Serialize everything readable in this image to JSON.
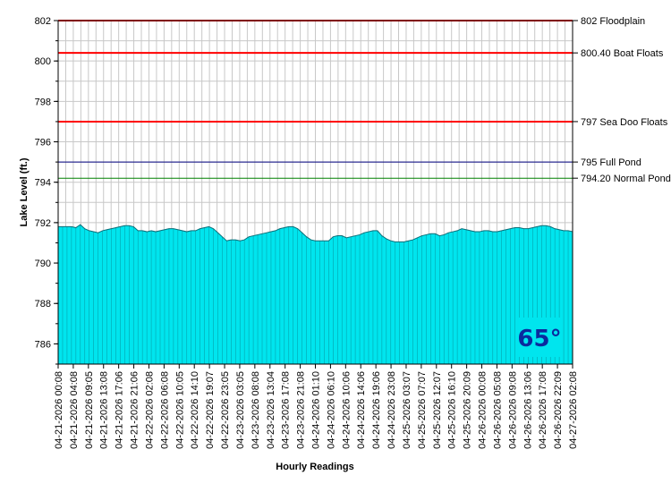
{
  "chart_data": {
    "type": "area",
    "xlabel": "Hourly Readings",
    "ylabel": "Lake Level (ft.)",
    "ylim": [
      785,
      802
    ],
    "yticks": [
      786,
      788,
      790,
      792,
      794,
      796,
      798,
      800,
      802
    ],
    "grid": true,
    "x_tick_labels": [
      "04-21-2026 00:08",
      "04-21-2026 04:08",
      "04-21-2026 09:05",
      "04-21-2026 13:08",
      "04-21-2026 17:06",
      "04-21-2026 21:06",
      "04-22-2026 02:08",
      "04-22-2026 06:08",
      "04-22-2026 10:05",
      "04-22-2026 14:10",
      "04-22-2026 19:07",
      "04-22-2026 23:05",
      "04-23-2026 03:05",
      "04-23-2026 08:08",
      "04-23-2026 13:04",
      "04-23-2026 17:08",
      "04-23-2026 21:08",
      "04-24-2026 01:10",
      "04-24-2026 06:10",
      "04-24-2026 10:06",
      "04-24-2026 14:06",
      "04-24-2026 19:06",
      "04-24-2026 23:08",
      "04-25-2026 03:07",
      "04-25-2026 07:07",
      "04-25-2026 12:07",
      "04-25-2026 16:10",
      "04-25-2026 20:09",
      "04-26-2026 00:08",
      "04-26-2026 05:08",
      "04-26-2026 09:08",
      "04-26-2026 13:06",
      "04-26-2026 17:08",
      "04-26-2026 22:09",
      "04-27-2026 02:08"
    ],
    "series": [
      {
        "color": "#00e5ee",
        "values": [
          791.8,
          791.8,
          791.8,
          791.8,
          791.75,
          791.9,
          791.7,
          791.6,
          791.55,
          791.5,
          791.6,
          791.65,
          791.7,
          791.75,
          791.8,
          791.85,
          791.85,
          791.8,
          791.6,
          791.6,
          791.55,
          791.6,
          791.55,
          791.6,
          791.65,
          791.7,
          791.7,
          791.65,
          791.6,
          791.55,
          791.6,
          791.6,
          791.7,
          791.75,
          791.8,
          791.7,
          791.5,
          791.3,
          791.1,
          791.15,
          791.15,
          791.1,
          791.15,
          791.3,
          791.35,
          791.4,
          791.45,
          791.5,
          791.55,
          791.6,
          791.7,
          791.75,
          791.8,
          791.8,
          791.7,
          791.5,
          791.3,
          791.15,
          791.1,
          791.1,
          791.1,
          791.1,
          791.3,
          791.35,
          791.35,
          791.25,
          791.3,
          791.35,
          791.4,
          791.5,
          791.55,
          791.6,
          791.6,
          791.35,
          791.2,
          791.1,
          791.05,
          791.05,
          791.05,
          791.1,
          791.15,
          791.25,
          791.35,
          791.4,
          791.45,
          791.45,
          791.35,
          791.4,
          791.5,
          791.55,
          791.6,
          791.7,
          791.65,
          791.6,
          791.55,
          791.55,
          791.6,
          791.6,
          791.55,
          791.55,
          791.6,
          791.65,
          791.7,
          791.75,
          791.75,
          791.7,
          791.7,
          791.75,
          791.8,
          791.85,
          791.85,
          791.8,
          791.7,
          791.65,
          791.6,
          791.6,
          791.55
        ]
      }
    ],
    "reference_lines": [
      {
        "value": 802,
        "label": "802 Floodplain",
        "color": "#ff0000"
      },
      {
        "value": 800.4,
        "label": "800.40 Boat Floats",
        "color": "#ff0000"
      },
      {
        "value": 797,
        "label": "797 Sea Doo Floats",
        "color": "#ff0000"
      },
      {
        "value": 795,
        "label": "795 Full Pond",
        "color": "#000080"
      },
      {
        "value": 794.2,
        "label": "794.20 Normal Pond",
        "color": "#008000"
      }
    ],
    "badge": {
      "text": "65°",
      "background": "#00e5ee",
      "color": "#0b2a9e"
    }
  }
}
